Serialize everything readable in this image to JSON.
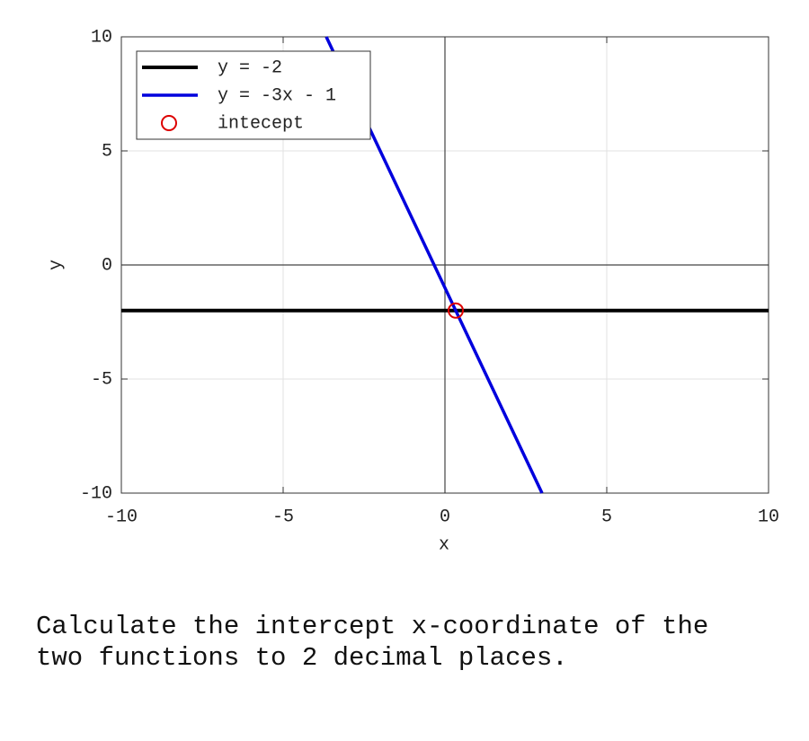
{
  "chart_data": {
    "type": "line",
    "xlabel": "x",
    "ylabel": "y",
    "xlim": [
      -10,
      10
    ],
    "ylim": [
      -10,
      10
    ],
    "xticks": [
      -10,
      -5,
      0,
      5,
      10
    ],
    "yticks": [
      -10,
      -5,
      0,
      5,
      10
    ],
    "grid": true,
    "legend": "upper left",
    "series": [
      {
        "name": "y = -2",
        "color": "#000000",
        "style": "line",
        "width": 4,
        "x": [
          -10,
          10
        ],
        "values": [
          -2,
          -2
        ]
      },
      {
        "name": "y = -3x - 1",
        "color": "#0000dd",
        "style": "line",
        "width": 3.5,
        "x": [
          -3.667,
          3
        ],
        "values": [
          10,
          -10
        ]
      },
      {
        "name": "intecept",
        "color": "#dd0000",
        "style": "marker",
        "width": 2,
        "x": [
          0.333
        ],
        "values": [
          -2
        ]
      }
    ]
  },
  "question": "Calculate the intercept x-coordinate of the two functions to 2 decimal places."
}
